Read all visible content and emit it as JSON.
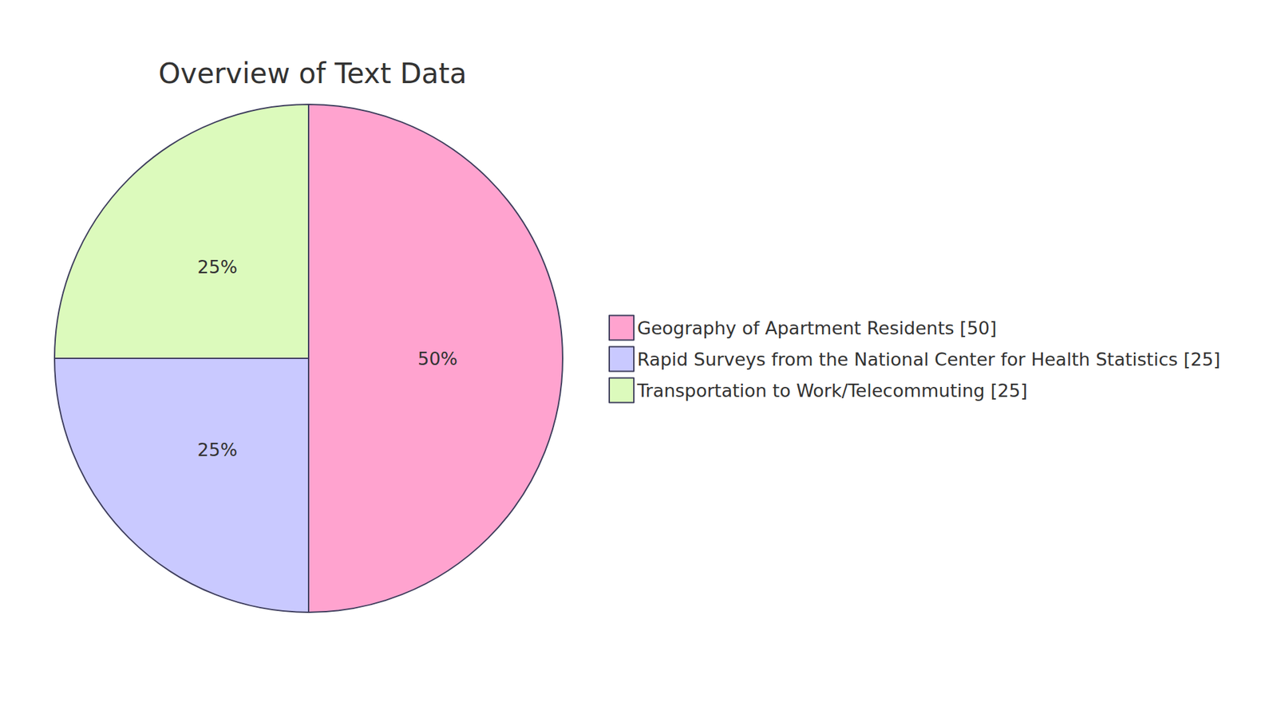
{
  "chart_data": {
    "type": "pie",
    "title": "Overview of Text Data",
    "categories": [
      "Geography of Apartment Residents [50]",
      "Rapid Surveys from the National Center for Health Statistics [25]",
      "Transportation to Work/Telecommuting [25]"
    ],
    "values": [
      50,
      25,
      25
    ],
    "value_labels": [
      "50%",
      "25%",
      "25%"
    ],
    "colors": [
      "#ffa3cf",
      "#c9c9ff",
      "#dcfabc"
    ],
    "data_labels": true,
    "legend": "right"
  }
}
